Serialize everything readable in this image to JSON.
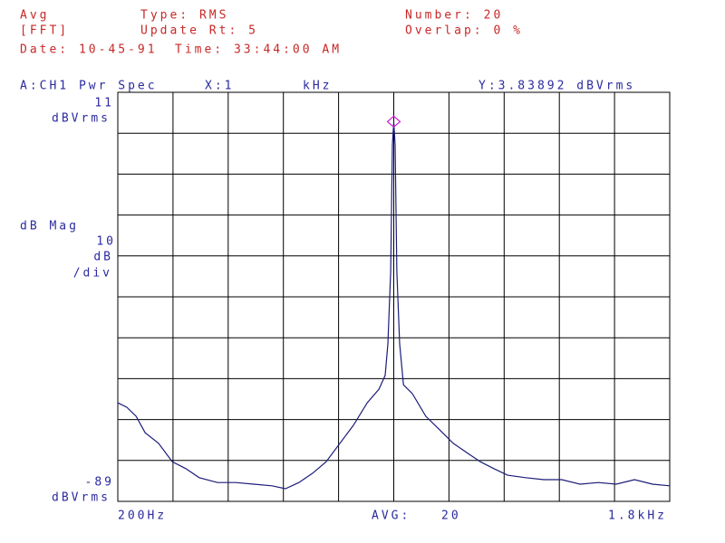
{
  "header": {
    "mode": "Avg",
    "window": "[FFT]",
    "type": "Type: RMS",
    "update_rate": "Update Rt: 5",
    "number": "Number: 20",
    "overlap": "Overlap: 0 %",
    "date": "Date: 10-45-91",
    "time": "Time: 33:44:00 AM"
  },
  "chart_data": {
    "type": "line",
    "title": "A:CH1 Pwr Spec",
    "marker": {
      "x_label": "X:1",
      "x_unit": "kHz",
      "y_label": "Y:3.83892 dBVrms",
      "x": 1000,
      "y": 3.83892
    },
    "y_unit_top": "dBVrms",
    "y_unit_bottom": "dBVrms",
    "y_axis_label": "dB Mag",
    "y_per_div": 10,
    "y_per_div_unit": "dB",
    "y_per_div_suffix": "/div",
    "avg_label": "AVG:",
    "avg_count": 20,
    "xlim": [
      200,
      1800
    ],
    "xticks": [
      {
        "value": 200,
        "label": "200Hz"
      },
      {
        "value": 1800,
        "label": "1.8kHz"
      }
    ],
    "ylim": [
      -89,
      11
    ],
    "yticks": [
      -89,
      11
    ],
    "grid": true,
    "x": [
      200,
      226,
      253,
      279,
      318,
      358,
      397,
      436,
      489,
      542,
      594,
      647,
      686,
      725,
      765,
      804,
      844,
      883,
      923,
      957,
      975,
      983,
      991,
      996,
      1000,
      1004,
      1009,
      1017,
      1028,
      1054,
      1093,
      1133,
      1172,
      1212,
      1251,
      1290,
      1330,
      1382,
      1435,
      1487,
      1540,
      1593,
      1645,
      1698,
      1750,
      1800
    ],
    "series": [
      {
        "color": "#1c1c7a",
        "values": [
          -64.9,
          -66.0,
          -68.2,
          -72.2,
          -74.8,
          -79.3,
          -81.0,
          -83.2,
          -84.4,
          -84.4,
          -84.8,
          -85.2,
          -85.9,
          -84.4,
          -82.1,
          -79.3,
          -74.8,
          -70.4,
          -64.9,
          -61.6,
          -58.2,
          -50.5,
          -32.8,
          -1.8,
          3.83892,
          -1.8,
          -32.8,
          -50.5,
          -60.5,
          -62.7,
          -68.2,
          -71.5,
          -74.8,
          -77.1,
          -79.3,
          -81.0,
          -82.6,
          -83.2,
          -83.7,
          -83.7,
          -84.8,
          -84.4,
          -84.8,
          -83.7,
          -84.8,
          -85.2
        ]
      }
    ]
  }
}
